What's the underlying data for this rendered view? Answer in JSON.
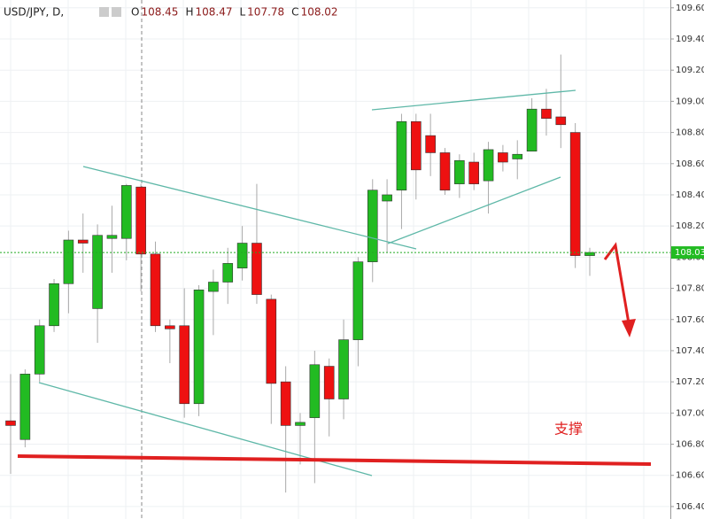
{
  "chart_data": {
    "type": "candlestick",
    "symbol": "USD/JPY, D,",
    "legend": [
      {
        "label": "O",
        "value": 108.45
      },
      {
        "label": "H",
        "value": 108.47
      },
      {
        "label": "L",
        "value": 107.78
      },
      {
        "label": "C",
        "value": 108.02
      }
    ],
    "annotation": "支撑",
    "last_price": 108.03,
    "up_color": "#22bb22",
    "down_color": "#ee1111",
    "grid": true,
    "open": [
      106.95,
      106.83,
      107.25,
      107.56,
      107.83,
      108.11,
      107.67,
      108.12,
      108.12,
      108.45,
      108.02,
      107.56,
      107.56,
      107.06,
      107.78,
      107.84,
      107.93,
      108.09,
      107.73,
      107.2,
      106.92,
      106.97,
      107.3,
      107.09,
      107.47,
      107.97,
      108.36,
      108.43,
      108.87,
      108.78,
      108.67,
      108.47,
      108.61,
      108.49,
      108.67,
      108.63,
      108.68,
      108.95,
      108.9,
      108.8,
      108.01
    ],
    "high": [
      107.25,
      107.28,
      107.6,
      107.86,
      108.17,
      108.28,
      108.21,
      108.33,
      108.47,
      108.47,
      108.1,
      107.6,
      107.8,
      107.82,
      107.92,
      108.06,
      108.2,
      108.47,
      107.76,
      107.3,
      107.0,
      107.4,
      107.35,
      107.6,
      108.0,
      108.5,
      108.5,
      108.92,
      108.92,
      108.92,
      108.7,
      108.66,
      108.67,
      108.74,
      108.72,
      108.75,
      109.02,
      109.08,
      109.3,
      108.86,
      108.06
    ],
    "low": [
      106.61,
      106.78,
      107.2,
      107.52,
      107.64,
      107.9,
      107.45,
      107.9,
      107.98,
      107.78,
      107.52,
      107.32,
      106.97,
      106.98,
      107.5,
      107.7,
      107.85,
      107.7,
      106.93,
      106.49,
      106.67,
      106.55,
      106.85,
      106.96,
      107.3,
      107.84,
      108.03,
      108.18,
      108.37,
      108.52,
      108.4,
      108.38,
      108.43,
      108.28,
      108.55,
      108.5,
      108.68,
      108.78,
      108.7,
      107.93,
      107.88
    ],
    "close": [
      106.92,
      107.25,
      107.56,
      107.83,
      108.11,
      108.09,
      108.14,
      108.14,
      108.46,
      108.02,
      107.56,
      107.54,
      107.06,
      107.79,
      107.84,
      107.96,
      108.09,
      107.76,
      107.19,
      106.92,
      106.94,
      107.31,
      107.09,
      107.47,
      107.97,
      108.43,
      108.4,
      108.87,
      108.56,
      108.67,
      108.43,
      108.62,
      108.47,
      108.69,
      108.61,
      108.66,
      108.95,
      108.89,
      108.85,
      108.01,
      108.03
    ],
    "ylim": [
      106.32,
      109.65
    ],
    "yticks": [
      {
        "value": 106.4,
        "label": "106.40"
      },
      {
        "value": 106.6,
        "label": "106.60"
      },
      {
        "value": 106.8,
        "label": "106.80"
      },
      {
        "value": 107.0,
        "label": "107.00"
      },
      {
        "value": 107.2,
        "label": "107.20"
      },
      {
        "value": 107.4,
        "label": "107.40"
      },
      {
        "value": 107.6,
        "label": "107.60"
      },
      {
        "value": 107.8,
        "label": "107.80"
      },
      {
        "value": 108.0,
        "label": "108.00"
      },
      {
        "value": 108.2,
        "label": "108.20"
      },
      {
        "value": 108.4,
        "label": "108.40"
      },
      {
        "value": 108.6,
        "label": "108.60"
      },
      {
        "value": 108.8,
        "label": "108.80"
      },
      {
        "value": 109.0,
        "label": "109.00"
      },
      {
        "value": 109.2,
        "label": "109.20"
      },
      {
        "value": 109.4,
        "label": "109.40"
      },
      {
        "value": 109.6,
        "label": "109.60"
      }
    ]
  }
}
